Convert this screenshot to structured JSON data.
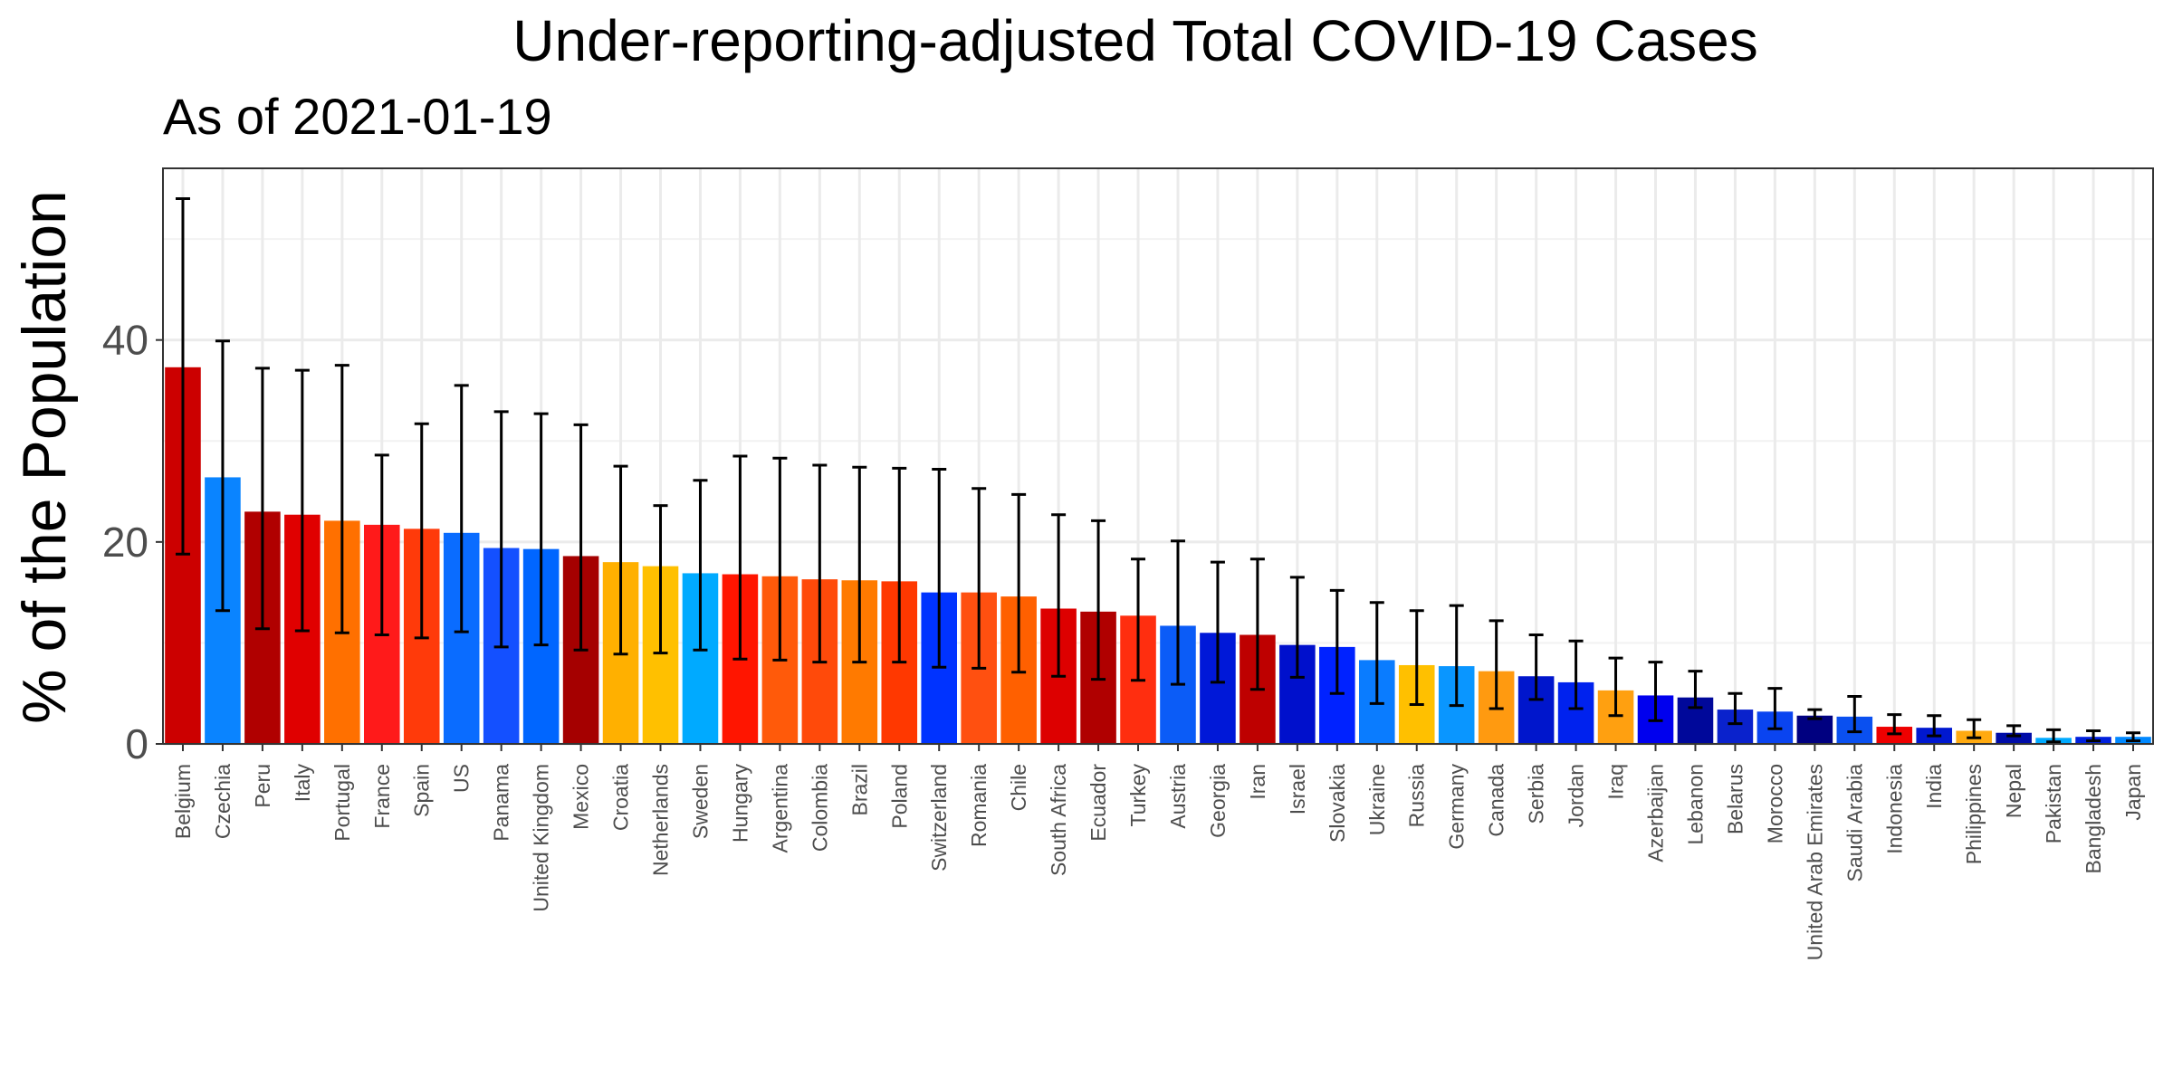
{
  "chart_data": {
    "type": "bar",
    "title": "Under-reporting-adjusted Total COVID-19 Cases",
    "subtitle": "As of 2021-01-19",
    "xlabel": "",
    "ylabel": "% of the Population",
    "ylim": [
      0,
      57
    ],
    "yticks": [
      0,
      20,
      40
    ],
    "grid": true,
    "legend": "none",
    "error_bars": true,
    "categories": [
      "Belgium",
      "Czechia",
      "Peru",
      "Italy",
      "Portugal",
      "France",
      "Spain",
      "US",
      "Panama",
      "United Kingdom",
      "Mexico",
      "Croatia",
      "Netherlands",
      "Sweden",
      "Hungary",
      "Argentina",
      "Colombia",
      "Brazil",
      "Poland",
      "Switzerland",
      "Romania",
      "Chile",
      "South Africa",
      "Ecuador",
      "Turkey",
      "Austria",
      "Georgia",
      "Iran",
      "Israel",
      "Slovakia",
      "Ukraine",
      "Russia",
      "Germany",
      "Canada",
      "Serbia",
      "Jordan",
      "Iraq",
      "Azerbaijan",
      "Lebanon",
      "Belarus",
      "Morocco",
      "United Arab Emirates",
      "Saudi Arabia",
      "Indonesia",
      "India",
      "Philippines",
      "Nepal",
      "Pakistan",
      "Bangladesh",
      "Japan"
    ],
    "values": [
      37.3,
      26.4,
      23.0,
      22.7,
      22.1,
      21.7,
      21.3,
      20.9,
      19.4,
      19.3,
      18.6,
      18.0,
      17.6,
      16.9,
      16.8,
      16.6,
      16.3,
      16.2,
      16.1,
      15.0,
      15.0,
      14.6,
      13.4,
      13.1,
      12.7,
      11.7,
      11.0,
      10.8,
      9.8,
      9.6,
      8.3,
      7.8,
      7.7,
      7.2,
      6.7,
      6.1,
      5.3,
      4.8,
      4.6,
      3.4,
      3.2,
      2.8,
      2.7,
      1.7,
      1.6,
      1.3,
      1.1,
      0.6,
      0.7,
      0.7
    ],
    "lower": [
      18.8,
      13.2,
      11.4,
      11.2,
      11.0,
      10.8,
      10.5,
      11.1,
      9.6,
      9.8,
      9.3,
      8.9,
      9.0,
      9.3,
      8.4,
      8.3,
      8.1,
      8.1,
      8.1,
      7.6,
      7.5,
      7.1,
      6.7,
      6.4,
      6.3,
      5.9,
      6.1,
      5.4,
      6.6,
      5.0,
      4.0,
      3.9,
      3.8,
      3.5,
      4.4,
      3.5,
      2.8,
      2.3,
      3.6,
      2.0,
      1.5,
      2.5,
      1.2,
      1.0,
      0.8,
      0.6,
      0.8,
      0.2,
      0.3,
      0.3
    ],
    "upper": [
      54.0,
      39.9,
      37.2,
      37.0,
      37.5,
      28.6,
      31.7,
      35.5,
      32.9,
      32.7,
      31.6,
      27.5,
      23.6,
      26.1,
      28.5,
      28.3,
      27.6,
      27.4,
      27.3,
      27.2,
      25.3,
      24.7,
      22.7,
      22.1,
      18.3,
      20.1,
      18.0,
      18.3,
      16.5,
      15.2,
      14.0,
      13.2,
      13.7,
      12.2,
      10.8,
      10.2,
      8.5,
      8.1,
      7.2,
      5.0,
      5.5,
      3.4,
      4.7,
      2.9,
      2.8,
      2.4,
      1.8,
      1.4,
      1.3,
      1.1
    ],
    "colors": [
      "#CC0000",
      "#0A84FF",
      "#B00000",
      "#E00000",
      "#FF7000",
      "#FF1A1A",
      "#FF3A0A",
      "#0A6CFF",
      "#1450FF",
      "#0066FF",
      "#A50000",
      "#FFB000",
      "#FFC000",
      "#00AAFF",
      "#FF1500",
      "#FF5A0A",
      "#FF4A0A",
      "#FF7A00",
      "#FF3800",
      "#0033FF",
      "#FF5010",
      "#FF6000",
      "#DD0000",
      "#B00000",
      "#FF2E0F",
      "#0B5CF7",
      "#0018D8",
      "#BE0000",
      "#0010CC",
      "#0022FF",
      "#0A7CFF",
      "#FFC000",
      "#0A96FF",
      "#FF9A10",
      "#0016CC",
      "#0022EE",
      "#FFA010",
      "#0000EE",
      "#00089A",
      "#0A22CC",
      "#0A44F0",
      "#000080",
      "#0A50F0",
      "#EE0000",
      "#0018D0",
      "#FFAA10",
      "#000CA8",
      "#00AAFF",
      "#0020DD",
      "#0088FF"
    ]
  }
}
